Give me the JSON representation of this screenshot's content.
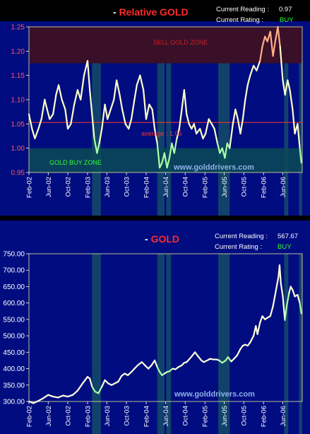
{
  "colors": {
    "background": "#000000",
    "plot_bg": "#000c80",
    "sell_zone": "#3a0f28",
    "buy_zone": "#0a4a56",
    "relative_line": "#ffffcc",
    "buy_highlight_line": "#aaffaa",
    "sell_highlight_line": "#ffb088",
    "gold_line": "#ffffdd",
    "average_line": "#ff3333",
    "title_red": "#ff2a2a",
    "buy_text": "#33ff33",
    "axis_text": "#ffffff"
  },
  "chart_data": [
    {
      "type": "line",
      "title_prefix": "- ",
      "title": "Relative GOLD",
      "current_reading_label": "Current Reading :",
      "current_reading_value": "0.97",
      "current_rating_label": "Current Rating :",
      "current_rating_value": "BUY",
      "ylim": [
        0.95,
        1.25
      ],
      "yticks": [
        "0.95",
        "1.00",
        "1.05",
        "1.10",
        "1.15",
        "1.20",
        "1.25"
      ],
      "x_ticks": [
        "Feb-02",
        "Jun-02",
        "Oct-02",
        "Feb-03",
        "Jun-03",
        "Oct-03",
        "Feb-04",
        "Jun-04",
        "Oct-04",
        "Feb-05",
        "Jun-05",
        "Oct-05",
        "Feb-06",
        "Jun-06"
      ],
      "sell_zone": {
        "label": "SELL GOLD ZONE",
        "from": 1.175,
        "to": 1.25
      },
      "buy_zone": {
        "label": "GOLD BUY ZONE",
        "from": 0.95,
        "to": 1.0
      },
      "average": {
        "label": "average : 1.05",
        "value": 1.053
      },
      "watermark": "www.golddrivers.com",
      "series": [
        {
          "points": [
            [
              "2002-02-01",
              1.07
            ],
            [
              "2002-02-20",
              1.04
            ],
            [
              "2002-03-10",
              1.02
            ],
            [
              "2002-04-01",
              1.04
            ],
            [
              "2002-04-20",
              1.06
            ],
            [
              "2002-05-10",
              1.1
            ],
            [
              "2002-05-25",
              1.08
            ],
            [
              "2002-06-10",
              1.06
            ],
            [
              "2002-07-01",
              1.07
            ],
            [
              "2002-07-20",
              1.11
            ],
            [
              "2002-08-05",
              1.13
            ],
            [
              "2002-08-25",
              1.1
            ],
            [
              "2002-09-15",
              1.08
            ],
            [
              "2002-10-01",
              1.04
            ],
            [
              "2002-10-20",
              1.05
            ],
            [
              "2002-11-10",
              1.09
            ],
            [
              "2002-12-01",
              1.12
            ],
            [
              "2002-12-20",
              1.1
            ],
            [
              "2003-01-10",
              1.15
            ],
            [
              "2003-02-01",
              1.18
            ],
            [
              "2003-02-15",
              1.12
            ],
            [
              "2003-03-01",
              1.07
            ],
            [
              "2003-03-15",
              1.02
            ],
            [
              "2003-04-01",
              0.99
            ],
            [
              "2003-04-15",
              1.01
            ],
            [
              "2003-05-01",
              1.04
            ],
            [
              "2003-05-20",
              1.09
            ],
            [
              "2003-06-05",
              1.06
            ],
            [
              "2003-06-25",
              1.08
            ],
            [
              "2003-07-15",
              1.1
            ],
            [
              "2003-08-01",
              1.14
            ],
            [
              "2003-08-20",
              1.11
            ],
            [
              "2003-09-05",
              1.08
            ],
            [
              "2003-09-25",
              1.05
            ],
            [
              "2003-10-15",
              1.04
            ],
            [
              "2003-11-01",
              1.06
            ],
            [
              "2003-11-20",
              1.1
            ],
            [
              "2003-12-05",
              1.13
            ],
            [
              "2003-12-25",
              1.15
            ],
            [
              "2004-01-15",
              1.12
            ],
            [
              "2004-02-01",
              1.06
            ],
            [
              "2004-02-20",
              1.09
            ],
            [
              "2004-03-10",
              1.08
            ],
            [
              "2004-03-25",
              1.04
            ],
            [
              "2004-04-10",
              1.01
            ],
            [
              "2004-04-25",
              0.96
            ],
            [
              "2004-05-10",
              0.97
            ],
            [
              "2004-05-25",
              0.99
            ],
            [
              "2004-06-10",
              0.96
            ],
            [
              "2004-06-25",
              0.98
            ],
            [
              "2004-07-10",
              1.01
            ],
            [
              "2004-07-25",
              0.99
            ],
            [
              "2004-08-10",
              1.02
            ],
            [
              "2004-08-25",
              1.04
            ],
            [
              "2004-09-10",
              1.08
            ],
            [
              "2004-09-25",
              1.12
            ],
            [
              "2004-10-10",
              1.07
            ],
            [
              "2004-10-25",
              1.05
            ],
            [
              "2004-11-10",
              1.04
            ],
            [
              "2004-11-25",
              1.05
            ],
            [
              "2004-12-10",
              1.03
            ],
            [
              "2005-01-01",
              1.04
            ],
            [
              "2005-01-20",
              1.02
            ],
            [
              "2005-02-05",
              1.03
            ],
            [
              "2005-02-25",
              1.06
            ],
            [
              "2005-03-15",
              1.05
            ],
            [
              "2005-04-01",
              1.04
            ],
            [
              "2005-04-20",
              1.01
            ],
            [
              "2005-05-05",
              0.99
            ],
            [
              "2005-05-20",
              1.0
            ],
            [
              "2005-06-05",
              0.98
            ],
            [
              "2005-06-20",
              1.01
            ],
            [
              "2005-07-05",
              1.0
            ],
            [
              "2005-07-25",
              1.05
            ],
            [
              "2005-08-10",
              1.08
            ],
            [
              "2005-08-25",
              1.06
            ],
            [
              "2005-09-10",
              1.03
            ],
            [
              "2005-09-25",
              1.06
            ],
            [
              "2005-10-10",
              1.1
            ],
            [
              "2005-10-25",
              1.13
            ],
            [
              "2005-11-10",
              1.15
            ],
            [
              "2005-12-01",
              1.17
            ],
            [
              "2005-12-20",
              1.16
            ],
            [
              "2006-01-10",
              1.18
            ],
            [
              "2006-01-25",
              1.21
            ],
            [
              "2006-02-10",
              1.23
            ],
            [
              "2006-02-25",
              1.22
            ],
            [
              "2006-03-15",
              1.24
            ],
            [
              "2006-04-01",
              1.19
            ],
            [
              "2006-04-15",
              1.22
            ],
            [
              "2006-05-01",
              1.25
            ],
            [
              "2006-05-15",
              1.21
            ],
            [
              "2006-06-01",
              1.14
            ],
            [
              "2006-06-15",
              1.11
            ],
            [
              "2006-07-01",
              1.14
            ],
            [
              "2006-07-15",
              1.12
            ],
            [
              "2006-08-01",
              1.08
            ],
            [
              "2006-08-15",
              1.03
            ],
            [
              "2006-09-01",
              1.05
            ],
            [
              "2006-09-15",
              1.0
            ],
            [
              "2006-09-25",
              0.97
            ]
          ]
        }
      ]
    },
    {
      "type": "line",
      "title_prefix": "- ",
      "title": "GOLD",
      "current_reading_label": "Current Reading :",
      "current_reading_value": "567.67",
      "current_rating_label": "Current Rating :",
      "current_rating_value": "BUY",
      "ylim": [
        300,
        750
      ],
      "yticks": [
        "300.00",
        "350.00",
        "400.00",
        "450.00",
        "500.00",
        "550.00",
        "600.00",
        "650.00",
        "700.00",
        "750.00"
      ],
      "x_ticks": [
        "Feb-02",
        "Jun-02",
        "Oct-02",
        "Feb-03",
        "Jun-03",
        "Oct-03",
        "Feb-04",
        "Jun-04",
        "Oct-04",
        "Feb-05",
        "Jun-05",
        "Oct-05",
        "Feb-06",
        "Jun-06"
      ],
      "watermark": "www.golddrivers.com",
      "series": [
        {
          "points": [
            [
              "2002-02-01",
              300
            ],
            [
              "2002-03-01",
              295
            ],
            [
              "2002-04-01",
              302
            ],
            [
              "2002-05-01",
              310
            ],
            [
              "2002-06-01",
              320
            ],
            [
              "2002-07-01",
              315
            ],
            [
              "2002-08-01",
              312
            ],
            [
              "2002-09-01",
              318
            ],
            [
              "2002-10-01",
              315
            ],
            [
              "2002-11-01",
              320
            ],
            [
              "2002-12-01",
              333
            ],
            [
              "2003-01-01",
              355
            ],
            [
              "2003-02-01",
              375
            ],
            [
              "2003-02-15",
              370
            ],
            [
              "2003-03-01",
              345
            ],
            [
              "2003-03-20",
              330
            ],
            [
              "2003-04-10",
              325
            ],
            [
              "2003-05-01",
              345
            ],
            [
              "2003-05-20",
              365
            ],
            [
              "2003-06-10",
              355
            ],
            [
              "2003-07-01",
              350
            ],
            [
              "2003-07-20",
              355
            ],
            [
              "2003-08-10",
              360
            ],
            [
              "2003-09-01",
              378
            ],
            [
              "2003-09-20",
              385
            ],
            [
              "2003-10-10",
              380
            ],
            [
              "2003-11-01",
              390
            ],
            [
              "2003-11-20",
              400
            ],
            [
              "2003-12-10",
              410
            ],
            [
              "2004-01-05",
              420
            ],
            [
              "2004-01-25",
              410
            ],
            [
              "2004-02-15",
              400
            ],
            [
              "2004-03-05",
              410
            ],
            [
              "2004-03-25",
              425
            ],
            [
              "2004-04-10",
              405
            ],
            [
              "2004-04-25",
              390
            ],
            [
              "2004-05-10",
              380
            ],
            [
              "2004-05-25",
              385
            ],
            [
              "2004-06-10",
              390
            ],
            [
              "2004-06-25",
              392
            ],
            [
              "2004-07-15",
              400
            ],
            [
              "2004-08-01",
              398
            ],
            [
              "2004-08-20",
              405
            ],
            [
              "2004-09-10",
              410
            ],
            [
              "2004-09-25",
              418
            ],
            [
              "2004-10-10",
              420
            ],
            [
              "2004-10-25",
              428
            ],
            [
              "2004-11-15",
              440
            ],
            [
              "2004-12-01",
              450
            ],
            [
              "2004-12-20",
              438
            ],
            [
              "2005-01-10",
              425
            ],
            [
              "2005-01-25",
              420
            ],
            [
              "2005-02-15",
              425
            ],
            [
              "2005-03-05",
              430
            ],
            [
              "2005-03-25",
              428
            ],
            [
              "2005-04-15",
              428
            ],
            [
              "2005-05-01",
              425
            ],
            [
              "2005-05-20",
              418
            ],
            [
              "2005-06-10",
              425
            ],
            [
              "2005-06-25",
              435
            ],
            [
              "2005-07-15",
              422
            ],
            [
              "2005-08-01",
              430
            ],
            [
              "2005-08-20",
              440
            ],
            [
              "2005-09-10",
              460
            ],
            [
              "2005-09-25",
              470
            ],
            [
              "2005-10-10",
              473
            ],
            [
              "2005-10-25",
              470
            ],
            [
              "2005-11-10",
              480
            ],
            [
              "2005-12-01",
              500
            ],
            [
              "2005-12-15",
              530
            ],
            [
              "2005-12-25",
              505
            ],
            [
              "2006-01-10",
              540
            ],
            [
              "2006-01-25",
              560
            ],
            [
              "2006-02-10",
              550
            ],
            [
              "2006-02-25",
              555
            ],
            [
              "2006-03-15",
              560
            ],
            [
              "2006-04-01",
              590
            ],
            [
              "2006-04-20",
              640
            ],
            [
              "2006-05-05",
              680
            ],
            [
              "2006-05-12",
              715
            ],
            [
              "2006-05-20",
              660
            ],
            [
              "2006-06-01",
              620
            ],
            [
              "2006-06-14",
              548
            ],
            [
              "2006-06-25",
              590
            ],
            [
              "2006-07-10",
              630
            ],
            [
              "2006-07-20",
              650
            ],
            [
              "2006-08-01",
              640
            ],
            [
              "2006-08-15",
              620
            ],
            [
              "2006-09-01",
              625
            ],
            [
              "2006-09-15",
              600
            ],
            [
              "2006-09-25",
              568
            ]
          ]
        }
      ]
    }
  ]
}
